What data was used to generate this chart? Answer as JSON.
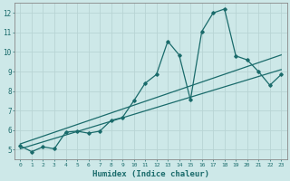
{
  "xlabel": "Humidex (Indice chaleur)",
  "xlim": [
    -0.5,
    23.5
  ],
  "ylim": [
    4.5,
    12.5
  ],
  "yticks": [
    5,
    6,
    7,
    8,
    9,
    10,
    11,
    12
  ],
  "xticks": [
    0,
    1,
    2,
    3,
    4,
    5,
    6,
    7,
    8,
    9,
    10,
    11,
    12,
    13,
    14,
    15,
    16,
    17,
    18,
    19,
    20,
    21,
    22,
    23
  ],
  "bg_color": "#cde8e8",
  "grid_color": "#b8d4d4",
  "line_color": "#1a6b6b",
  "line1_x": [
    0,
    1,
    2,
    3,
    4,
    5,
    6,
    7,
    8,
    9,
    10,
    11,
    12,
    13,
    14,
    15,
    16,
    17,
    18,
    19,
    20,
    21,
    22,
    23
  ],
  "line1_y": [
    5.2,
    4.9,
    5.15,
    5.05,
    5.9,
    5.95,
    5.85,
    5.95,
    6.5,
    6.65,
    7.5,
    8.4,
    8.85,
    10.55,
    9.85,
    7.55,
    11.05,
    12.0,
    12.2,
    9.8,
    9.6,
    9.0,
    8.3,
    8.85
  ],
  "line2_x": [
    0,
    23
  ],
  "line2_y": [
    5.05,
    9.1
  ],
  "line3_x": [
    0,
    23
  ],
  "line3_y": [
    5.3,
    9.85
  ]
}
